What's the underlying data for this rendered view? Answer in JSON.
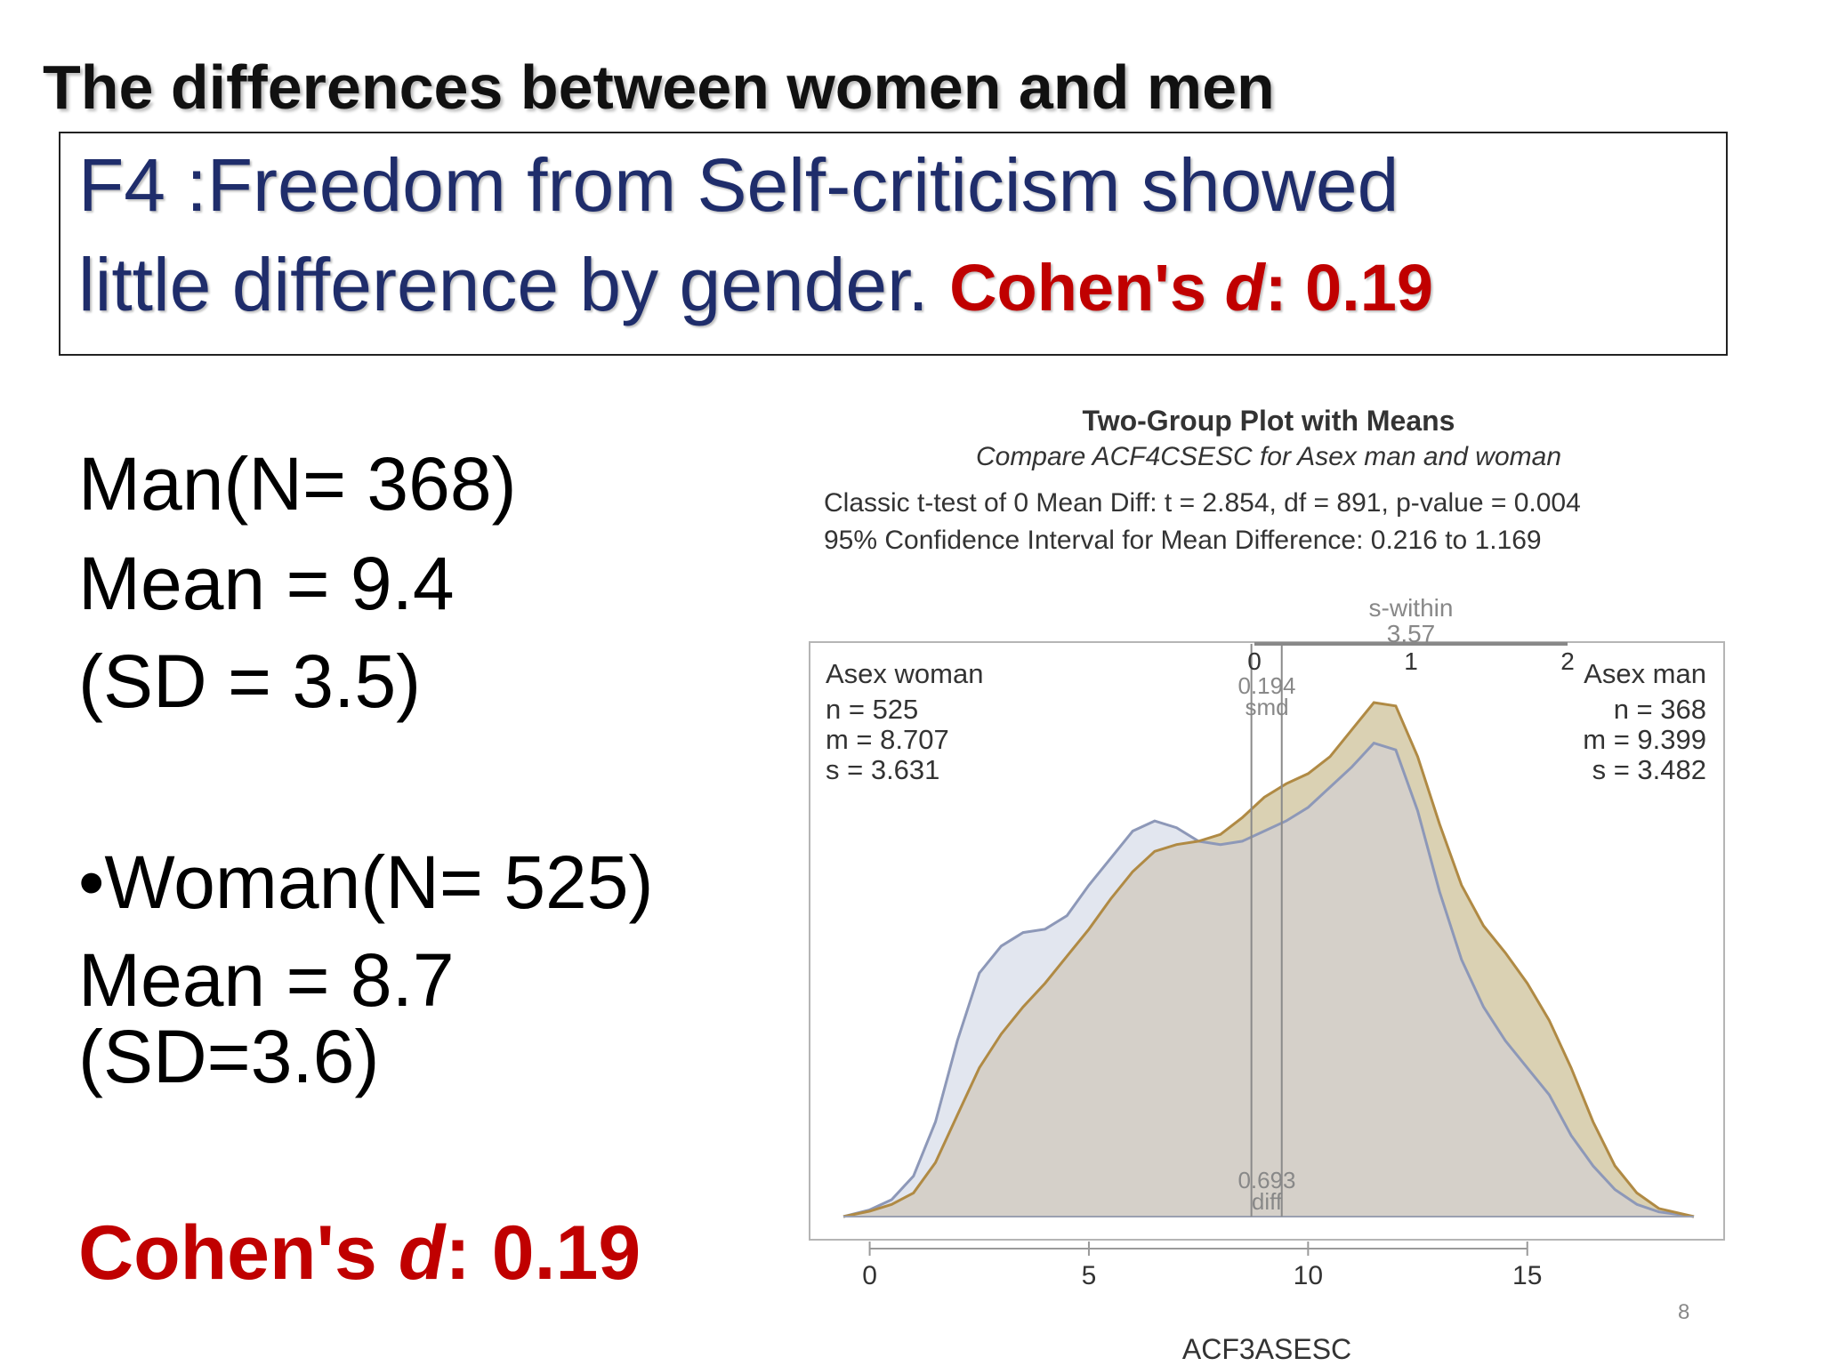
{
  "slide": {
    "title": "The differences between women and men",
    "headline_line1": "F4 :Freedom from Self-criticism showed",
    "headline_line2": "little difference by gender.",
    "cohen_label": "Cohen's ",
    "cohen_d": "d",
    "cohen_value": ":  0.19",
    "page_number": "8"
  },
  "stats": {
    "man_n": "Man(N= 368)",
    "man_mean": "Mean = 9.4",
    "man_sd": "(SD = 3.5)",
    "woman_n": "•Woman(N= 525)",
    "woman_mean": "Mean = 8.7",
    "woman_sd": "(SD=3.6)"
  },
  "chart_data": {
    "type": "area",
    "title": "Two-Group Plot with Means",
    "subtitle": "Compare ACF4CSESC for Asex man and woman",
    "ttest_line": "Classic t-test of 0 Mean Diff:   t = 2.854,  df = 891,   p-value = 0.004",
    "ci_line": "95% Confidence Interval for Mean Difference:  0.216 to 1.169",
    "xlabel": "ACF3ASESC",
    "xlim": [
      -0.6,
      18.8
    ],
    "xticks": [
      "0",
      "5",
      "10",
      "15"
    ],
    "colors": {
      "woman_fill": "#dde2ec",
      "woman_line": "#8d98b8",
      "man_fill": "#d4c9a6",
      "man_line": "#b08a44",
      "overlap": "#d5d0c9"
    },
    "s_within": {
      "label": "s-within",
      "value": "3.57",
      "ticks": [
        "0",
        "1",
        "2"
      ]
    },
    "smd": {
      "value": "0.194",
      "label": "smd"
    },
    "diff": {
      "value": "0.693",
      "label": "diff"
    },
    "groups": [
      {
        "name": "Asex woman",
        "n": "n = 525",
        "m": "m = 8.707",
        "s": "s = 3.631",
        "mean": 8.707
      },
      {
        "name": "Asex man",
        "n": "n = 368",
        "m": "m = 9.399",
        "s": "s = 3.482",
        "mean": 9.399
      }
    ],
    "series": [
      {
        "name": "Asex woman",
        "x": [
          -0.6,
          0,
          0.5,
          1,
          1.5,
          2,
          2.5,
          3,
          3.5,
          4,
          4.5,
          5,
          5.5,
          6,
          6.5,
          7,
          7.5,
          8,
          8.5,
          9,
          9.5,
          10,
          10.5,
          11,
          11.5,
          12,
          12.5,
          13,
          13.5,
          14,
          14.5,
          15,
          15.5,
          16,
          16.5,
          17,
          17.5,
          18,
          18.8
        ],
        "y": [
          0.0,
          0.01,
          0.025,
          0.06,
          0.14,
          0.26,
          0.36,
          0.4,
          0.42,
          0.425,
          0.445,
          0.49,
          0.53,
          0.57,
          0.585,
          0.575,
          0.555,
          0.55,
          0.555,
          0.57,
          0.585,
          0.605,
          0.635,
          0.665,
          0.7,
          0.69,
          0.6,
          0.48,
          0.38,
          0.31,
          0.26,
          0.22,
          0.18,
          0.12,
          0.075,
          0.04,
          0.018,
          0.007,
          0.0
        ]
      },
      {
        "name": "Asex man",
        "x": [
          -0.6,
          0,
          0.5,
          1,
          1.5,
          2,
          2.5,
          3,
          3.5,
          4,
          4.5,
          5,
          5.5,
          6,
          6.5,
          7,
          7.5,
          8,
          8.5,
          9,
          9.5,
          10,
          10.5,
          11,
          11.5,
          12,
          12.5,
          13,
          13.5,
          14,
          14.5,
          15,
          15.5,
          16,
          16.5,
          17,
          17.5,
          18,
          18.8
        ],
        "y": [
          0.0,
          0.008,
          0.018,
          0.035,
          0.08,
          0.15,
          0.22,
          0.27,
          0.31,
          0.345,
          0.385,
          0.425,
          0.47,
          0.51,
          0.54,
          0.55,
          0.555,
          0.565,
          0.59,
          0.62,
          0.64,
          0.655,
          0.68,
          0.72,
          0.76,
          0.755,
          0.68,
          0.58,
          0.49,
          0.43,
          0.39,
          0.345,
          0.29,
          0.22,
          0.14,
          0.075,
          0.035,
          0.012,
          0.0
        ]
      }
    ]
  }
}
